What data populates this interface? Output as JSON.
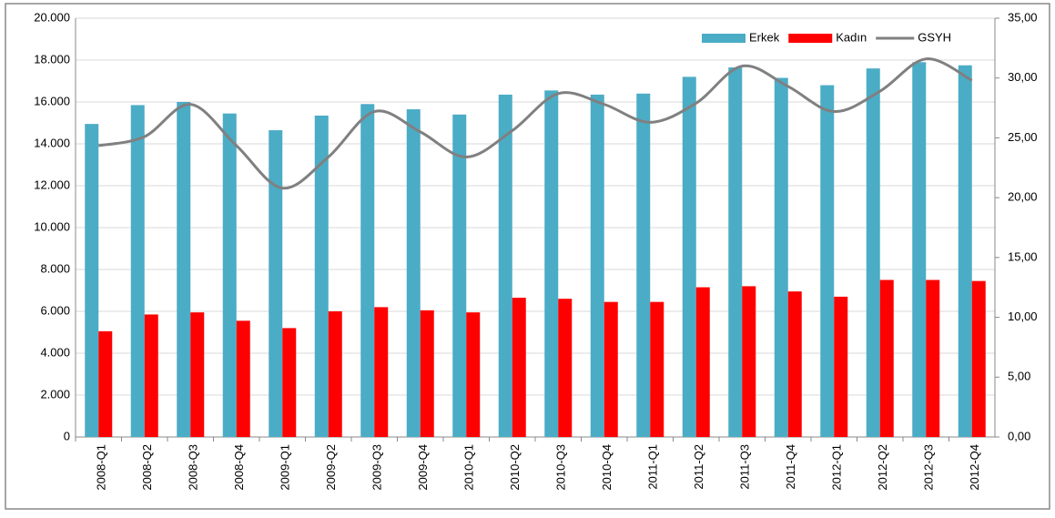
{
  "chart_data": {
    "type": "bar_line",
    "categories": [
      "2008-Q1",
      "2008-Q2",
      "2008-Q3",
      "2008-Q4",
      "2009-Q1",
      "2009-Q2",
      "2009-Q3",
      "2009-Q4",
      "2010-Q1",
      "2010-Q2",
      "2010-Q3",
      "2010-Q4",
      "2011-Q1",
      "2011-Q2",
      "2011-Q3",
      "2011-Q4",
      "2012-Q1",
      "2012-Q2",
      "2012-Q3",
      "2012-Q4"
    ],
    "series": [
      {
        "name": "Erkek",
        "type": "bar",
        "color": "#4bacc6",
        "values": [
          14950,
          15850,
          16000,
          15450,
          14650,
          15350,
          15900,
          15650,
          15400,
          16350,
          16550,
          16350,
          16400,
          17200,
          17650,
          17150,
          16800,
          17600,
          17900,
          17750
        ]
      },
      {
        "name": "Kadın",
        "type": "bar",
        "color": "#ff0000",
        "values": [
          5050,
          5850,
          5950,
          5550,
          5200,
          6000,
          6200,
          6050,
          5950,
          6650,
          6600,
          6450,
          6450,
          7150,
          7200,
          6950,
          6700,
          7500,
          7500,
          7450
        ]
      },
      {
        "name": "GSYH",
        "type": "line",
        "axis": "y2",
        "color": "#808080",
        "values": [
          24.35,
          25.1,
          27.8,
          24.35,
          20.8,
          23.4,
          27.2,
          25.5,
          23.4,
          25.6,
          28.7,
          27.8,
          26.3,
          27.9,
          31.0,
          29.3,
          27.2,
          28.9,
          31.6,
          29.8
        ]
      }
    ],
    "ylim": [
      0,
      20000
    ],
    "yticks": [
      0,
      {
        "value": 2000,
        "label": "2.000"
      },
      {
        "value": 4000,
        "label": "4.000"
      },
      {
        "value": 6000,
        "label": "6.000"
      },
      {
        "value": 8000,
        "label": "8.000"
      },
      {
        "value": 10000,
        "label": "10.000"
      },
      {
        "value": 12000,
        "label": "12.000"
      },
      {
        "value": 14000,
        "label": "14.000"
      },
      {
        "value": 16000,
        "label": "16.000"
      },
      {
        "value": 18000,
        "label": "18.000"
      },
      {
        "value": 20000,
        "label": "20.000"
      }
    ],
    "y2lim": [
      0,
      35
    ],
    "y2ticks": [
      {
        "value": 0,
        "label": "0,00"
      },
      {
        "value": 5,
        "label": "5,00"
      },
      {
        "value": 10,
        "label": "10,00"
      },
      {
        "value": 15,
        "label": "15,00"
      },
      {
        "value": 20,
        "label": "20,00"
      },
      {
        "value": 25,
        "label": "25,00"
      },
      {
        "value": 30,
        "label": "30,00"
      },
      {
        "value": 35,
        "label": "35,00"
      }
    ],
    "grid": true,
    "legend": "top-right"
  }
}
